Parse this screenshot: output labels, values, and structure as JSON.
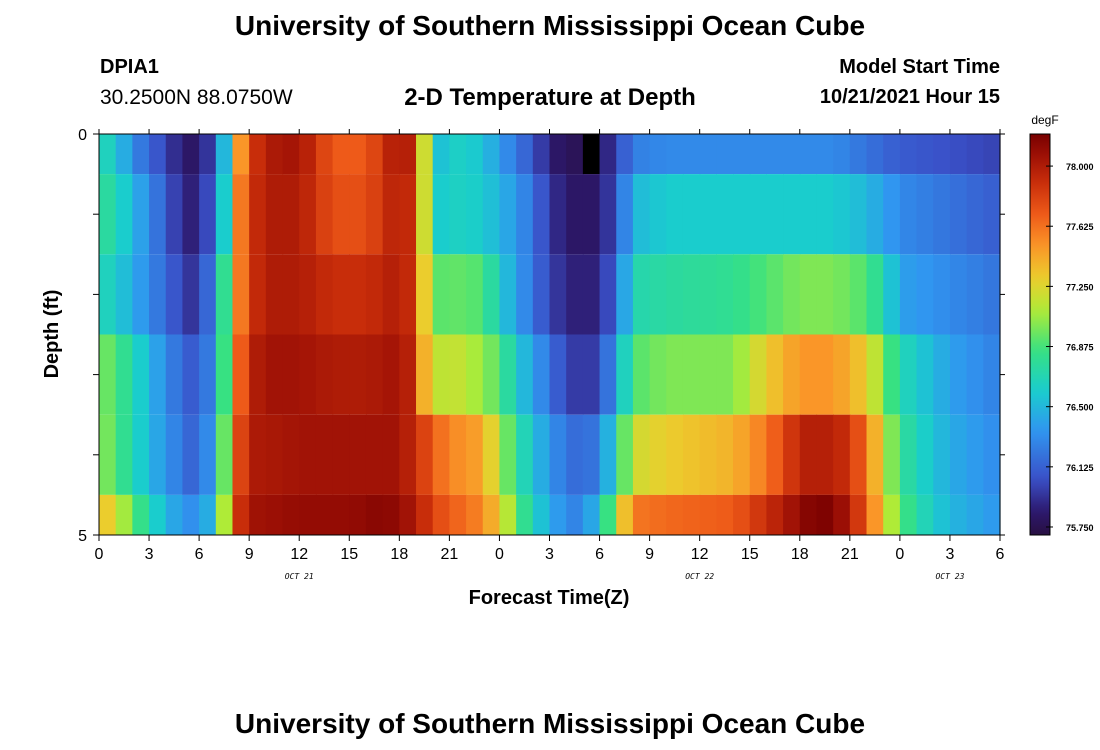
{
  "header": {
    "title": "University of Southern Mississippi Ocean Cube",
    "station": "DPIA1",
    "coords": "30.2500N  88.0750W",
    "subtitle": "2-D Temperature at Depth",
    "start_label": "Model Start Time",
    "start_value": "10/21/2021 Hour 15"
  },
  "footer": {
    "title": "University of Southern Mississippi Ocean Cube"
  },
  "chart_data": {
    "type": "heatmap",
    "xlabel": "Forecast Time(Z)",
    "ylabel": "Depth (ft)",
    "x_tick_labels": [
      "0",
      "3",
      "6",
      "9",
      "12",
      "15",
      "18",
      "21",
      "0",
      "3",
      "6",
      "9",
      "12",
      "15",
      "18",
      "21",
      "0",
      "3",
      "6"
    ],
    "x_range_hours": [
      0,
      54
    ],
    "date_labels": [
      {
        "text": "OCT 21",
        "hour": 12
      },
      {
        "text": "OCT 22",
        "hour": 36
      },
      {
        "text": "OCT 23",
        "hour": 51
      }
    ],
    "y_tick_labels": [
      "0",
      "5"
    ],
    "y_range": [
      0,
      5
    ],
    "colorbar": {
      "unit": "degF",
      "min": 75.7,
      "max": 78.2,
      "ticks": [
        "78.000",
        "77.625",
        "77.250",
        "76.875",
        "76.500",
        "76.125",
        "75.750"
      ],
      "tick_values": [
        78.0,
        77.625,
        77.25,
        76.875,
        76.5,
        76.125,
        75.75
      ]
    },
    "missing_time_hour": 29,
    "depth_rows": [
      {
        "depth_range": [
          0,
          0.5
        ],
        "time_nodes": [
          [
            0,
            76.7
          ],
          [
            1,
            76.6
          ],
          [
            2,
            76.3
          ],
          [
            3,
            76.15
          ],
          [
            4,
            76.0
          ],
          [
            5,
            75.85
          ],
          [
            6,
            75.8
          ],
          [
            7,
            76.1
          ],
          [
            7.5,
            76.5
          ],
          [
            8,
            77.1
          ],
          [
            8.5,
            77.5
          ],
          [
            9,
            77.8
          ],
          [
            10,
            78.0
          ],
          [
            12,
            78.05
          ],
          [
            14,
            77.7
          ],
          [
            16,
            77.7
          ],
          [
            18,
            78.05
          ],
          [
            19,
            77.9
          ],
          [
            19.5,
            77.2
          ],
          [
            20,
            76.8
          ],
          [
            20.5,
            76.55
          ],
          [
            21,
            76.6
          ],
          [
            22,
            76.65
          ],
          [
            24,
            76.4
          ],
          [
            25,
            76.2
          ],
          [
            26,
            76.1
          ],
          [
            27,
            75.85
          ],
          [
            28,
            75.8
          ],
          [
            29,
            75.75
          ],
          [
            30,
            75.8
          ],
          [
            31,
            76.0
          ],
          [
            32,
            76.25
          ],
          [
            34,
            76.3
          ],
          [
            36,
            76.3
          ],
          [
            40,
            76.3
          ],
          [
            44,
            76.3
          ],
          [
            46,
            76.2
          ],
          [
            48,
            76.1
          ],
          [
            51,
            76.05
          ],
          [
            54,
            76.0
          ]
        ]
      },
      {
        "depth_range": [
          0.5,
          1.5
        ],
        "time_nodes": [
          [
            0,
            76.8
          ],
          [
            1,
            76.7
          ],
          [
            2,
            76.5
          ],
          [
            3,
            76.3
          ],
          [
            4,
            76.1
          ],
          [
            5,
            75.9
          ],
          [
            6,
            75.85
          ],
          [
            7,
            76.2
          ],
          [
            7.5,
            76.6
          ],
          [
            8,
            77.2
          ],
          [
            8.5,
            77.6
          ],
          [
            9,
            77.85
          ],
          [
            10,
            78.0
          ],
          [
            12,
            78.0
          ],
          [
            14,
            77.75
          ],
          [
            16,
            77.75
          ],
          [
            18,
            78.0
          ],
          [
            19,
            77.85
          ],
          [
            19.5,
            77.2
          ],
          [
            20,
            76.75
          ],
          [
            20.5,
            76.6
          ],
          [
            22,
            76.65
          ],
          [
            24,
            76.5
          ],
          [
            26,
            76.2
          ],
          [
            27,
            75.95
          ],
          [
            28,
            75.85
          ],
          [
            29,
            75.8
          ],
          [
            30,
            75.85
          ],
          [
            31,
            76.05
          ],
          [
            32,
            76.5
          ],
          [
            34,
            76.6
          ],
          [
            38,
            76.6
          ],
          [
            44,
            76.6
          ],
          [
            46,
            76.5
          ],
          [
            48,
            76.3
          ],
          [
            51,
            76.2
          ],
          [
            54,
            76.1
          ]
        ]
      },
      {
        "depth_range": [
          1.5,
          2.5
        ],
        "time_nodes": [
          [
            0,
            76.7
          ],
          [
            1,
            76.6
          ],
          [
            2,
            76.45
          ],
          [
            3,
            76.3
          ],
          [
            4,
            76.15
          ],
          [
            5,
            76.0
          ],
          [
            6,
            75.9
          ],
          [
            7,
            76.4
          ],
          [
            7.5,
            76.8
          ],
          [
            8,
            77.3
          ],
          [
            8.5,
            77.6
          ],
          [
            9,
            77.85
          ],
          [
            10,
            78.0
          ],
          [
            12,
            78.0
          ],
          [
            14,
            77.9
          ],
          [
            16,
            77.9
          ],
          [
            18,
            78.0
          ],
          [
            19,
            77.85
          ],
          [
            19.5,
            77.3
          ],
          [
            20,
            76.9
          ],
          [
            21,
            76.95
          ],
          [
            23,
            76.9
          ],
          [
            24,
            76.6
          ],
          [
            25,
            76.4
          ],
          [
            26,
            76.2
          ],
          [
            27,
            76.0
          ],
          [
            28,
            75.9
          ],
          [
            29,
            75.85
          ],
          [
            30,
            75.9
          ],
          [
            31,
            76.15
          ],
          [
            32,
            76.7
          ],
          [
            34,
            76.75
          ],
          [
            38,
            76.8
          ],
          [
            42,
            77.0
          ],
          [
            44,
            77.0
          ],
          [
            46,
            76.9
          ],
          [
            47,
            76.7
          ],
          [
            48,
            76.4
          ],
          [
            51,
            76.3
          ],
          [
            54,
            76.2
          ]
        ]
      },
      {
        "depth_range": [
          2.5,
          3.5
        ],
        "time_nodes": [
          [
            0,
            77.0
          ],
          [
            1,
            76.9
          ],
          [
            2,
            76.7
          ],
          [
            3,
            76.5
          ],
          [
            4,
            76.3
          ],
          [
            5,
            76.15
          ],
          [
            6,
            76.05
          ],
          [
            7,
            76.4
          ],
          [
            7.5,
            76.85
          ],
          [
            8,
            77.4
          ],
          [
            8.5,
            77.7
          ],
          [
            9,
            77.95
          ],
          [
            10,
            78.05
          ],
          [
            12,
            78.05
          ],
          [
            14,
            78.0
          ],
          [
            16,
            78.0
          ],
          [
            18,
            78.05
          ],
          [
            19,
            77.9
          ],
          [
            19.5,
            77.4
          ],
          [
            20,
            77.1
          ],
          [
            21,
            77.2
          ],
          [
            23,
            77.05
          ],
          [
            24,
            76.9
          ],
          [
            25,
            76.6
          ],
          [
            26,
            76.4
          ],
          [
            27,
            76.2
          ],
          [
            28,
            76.0
          ],
          [
            29,
            75.95
          ],
          [
            30,
            76.0
          ],
          [
            31,
            76.4
          ],
          [
            32,
            76.9
          ],
          [
            34,
            77.0
          ],
          [
            38,
            77.0
          ],
          [
            40,
            77.3
          ],
          [
            42,
            77.5
          ],
          [
            44,
            77.5
          ],
          [
            46,
            77.3
          ],
          [
            47,
            77.0
          ],
          [
            48,
            76.7
          ],
          [
            51,
            76.4
          ],
          [
            54,
            76.25
          ]
        ]
      },
      {
        "depth_range": [
          3.5,
          4.5
        ],
        "time_nodes": [
          [
            0,
            77.05
          ],
          [
            1,
            76.9
          ],
          [
            2,
            76.7
          ],
          [
            3,
            76.5
          ],
          [
            4,
            76.35
          ],
          [
            5,
            76.2
          ],
          [
            6,
            76.1
          ],
          [
            7,
            76.5
          ],
          [
            7.5,
            76.95
          ],
          [
            8,
            77.5
          ],
          [
            8.5,
            77.8
          ],
          [
            9,
            78.0
          ],
          [
            12,
            78.05
          ],
          [
            15,
            78.05
          ],
          [
            18,
            78.05
          ],
          [
            19,
            77.9
          ],
          [
            20,
            77.7
          ],
          [
            21,
            77.55
          ],
          [
            23,
            77.45
          ],
          [
            24,
            77.1
          ],
          [
            25,
            76.8
          ],
          [
            26,
            76.55
          ],
          [
            27,
            76.35
          ],
          [
            28,
            76.2
          ],
          [
            29,
            76.15
          ],
          [
            30,
            76.25
          ],
          [
            31,
            76.7
          ],
          [
            32,
            77.2
          ],
          [
            34,
            77.3
          ],
          [
            38,
            77.4
          ],
          [
            40,
            77.6
          ],
          [
            42,
            77.95
          ],
          [
            43,
            78.0
          ],
          [
            45,
            77.9
          ],
          [
            46,
            77.6
          ],
          [
            47,
            77.2
          ],
          [
            48,
            76.8
          ],
          [
            50,
            76.55
          ],
          [
            51,
            76.45
          ],
          [
            54,
            76.3
          ]
        ]
      },
      {
        "depth_range": [
          4.5,
          5.0
        ],
        "time_nodes": [
          [
            0,
            77.4
          ],
          [
            1,
            77.2
          ],
          [
            2,
            76.95
          ],
          [
            3,
            76.7
          ],
          [
            4,
            76.5
          ],
          [
            5,
            76.35
          ],
          [
            6,
            76.3
          ],
          [
            7,
            76.6
          ],
          [
            7.5,
            77.1
          ],
          [
            8,
            77.6
          ],
          [
            8.5,
            77.9
          ],
          [
            9,
            78.05
          ],
          [
            12,
            78.1
          ],
          [
            15,
            78.1
          ],
          [
            17,
            78.15
          ],
          [
            18,
            78.1
          ],
          [
            19,
            78.0
          ],
          [
            20,
            77.8
          ],
          [
            21,
            77.7
          ],
          [
            23,
            77.55
          ],
          [
            24,
            77.3
          ],
          [
            25,
            76.95
          ],
          [
            26,
            76.65
          ],
          [
            27,
            76.45
          ],
          [
            28,
            76.3
          ],
          [
            29,
            76.25
          ],
          [
            30,
            76.6
          ],
          [
            31,
            77.1
          ],
          [
            32,
            77.6
          ],
          [
            34,
            77.65
          ],
          [
            38,
            77.7
          ],
          [
            40,
            77.9
          ],
          [
            42,
            78.1
          ],
          [
            43,
            78.2
          ],
          [
            44,
            78.15
          ],
          [
            45,
            78.0
          ],
          [
            46,
            77.7
          ],
          [
            47,
            77.3
          ],
          [
            48,
            76.9
          ],
          [
            50,
            76.6
          ],
          [
            51,
            76.5
          ],
          [
            54,
            76.35
          ]
        ]
      }
    ]
  }
}
